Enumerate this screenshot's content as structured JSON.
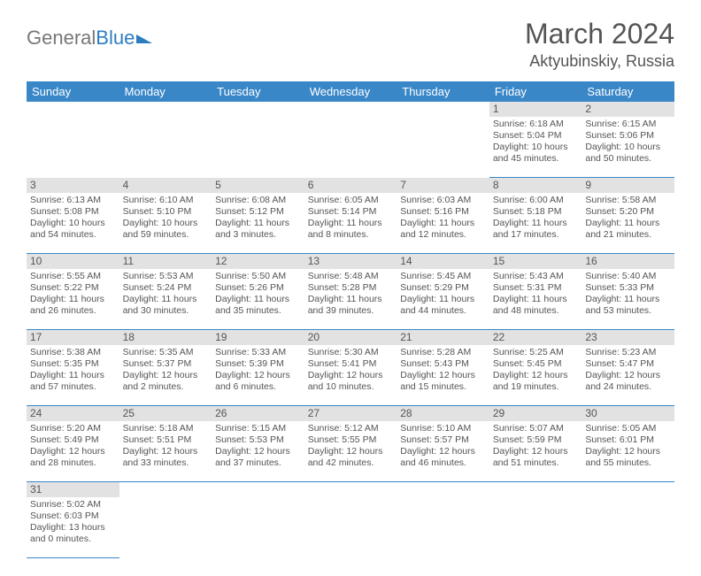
{
  "logo": {
    "part1": "General",
    "part2": "Blue"
  },
  "title": "March 2024",
  "location": "Aktyubinskiy, Russia",
  "dayHeaders": [
    "Sunday",
    "Monday",
    "Tuesday",
    "Wednesday",
    "Thursday",
    "Friday",
    "Saturday"
  ],
  "colors": {
    "headerBg": "#3a87c8",
    "dayNumBg": "#e2e2e2",
    "text": "#555555",
    "logoBlue": "#2d7dc0"
  },
  "weeks": [
    [
      null,
      null,
      null,
      null,
      null,
      {
        "n": "1",
        "sr": "Sunrise: 6:18 AM",
        "ss": "Sunset: 5:04 PM",
        "dl1": "Daylight: 10 hours",
        "dl2": "and 45 minutes."
      },
      {
        "n": "2",
        "sr": "Sunrise: 6:15 AM",
        "ss": "Sunset: 5:06 PM",
        "dl1": "Daylight: 10 hours",
        "dl2": "and 50 minutes."
      }
    ],
    [
      {
        "n": "3",
        "sr": "Sunrise: 6:13 AM",
        "ss": "Sunset: 5:08 PM",
        "dl1": "Daylight: 10 hours",
        "dl2": "and 54 minutes."
      },
      {
        "n": "4",
        "sr": "Sunrise: 6:10 AM",
        "ss": "Sunset: 5:10 PM",
        "dl1": "Daylight: 10 hours",
        "dl2": "and 59 minutes."
      },
      {
        "n": "5",
        "sr": "Sunrise: 6:08 AM",
        "ss": "Sunset: 5:12 PM",
        "dl1": "Daylight: 11 hours",
        "dl2": "and 3 minutes."
      },
      {
        "n": "6",
        "sr": "Sunrise: 6:05 AM",
        "ss": "Sunset: 5:14 PM",
        "dl1": "Daylight: 11 hours",
        "dl2": "and 8 minutes."
      },
      {
        "n": "7",
        "sr": "Sunrise: 6:03 AM",
        "ss": "Sunset: 5:16 PM",
        "dl1": "Daylight: 11 hours",
        "dl2": "and 12 minutes."
      },
      {
        "n": "8",
        "sr": "Sunrise: 6:00 AM",
        "ss": "Sunset: 5:18 PM",
        "dl1": "Daylight: 11 hours",
        "dl2": "and 17 minutes."
      },
      {
        "n": "9",
        "sr": "Sunrise: 5:58 AM",
        "ss": "Sunset: 5:20 PM",
        "dl1": "Daylight: 11 hours",
        "dl2": "and 21 minutes."
      }
    ],
    [
      {
        "n": "10",
        "sr": "Sunrise: 5:55 AM",
        "ss": "Sunset: 5:22 PM",
        "dl1": "Daylight: 11 hours",
        "dl2": "and 26 minutes."
      },
      {
        "n": "11",
        "sr": "Sunrise: 5:53 AM",
        "ss": "Sunset: 5:24 PM",
        "dl1": "Daylight: 11 hours",
        "dl2": "and 30 minutes."
      },
      {
        "n": "12",
        "sr": "Sunrise: 5:50 AM",
        "ss": "Sunset: 5:26 PM",
        "dl1": "Daylight: 11 hours",
        "dl2": "and 35 minutes."
      },
      {
        "n": "13",
        "sr": "Sunrise: 5:48 AM",
        "ss": "Sunset: 5:28 PM",
        "dl1": "Daylight: 11 hours",
        "dl2": "and 39 minutes."
      },
      {
        "n": "14",
        "sr": "Sunrise: 5:45 AM",
        "ss": "Sunset: 5:29 PM",
        "dl1": "Daylight: 11 hours",
        "dl2": "and 44 minutes."
      },
      {
        "n": "15",
        "sr": "Sunrise: 5:43 AM",
        "ss": "Sunset: 5:31 PM",
        "dl1": "Daylight: 11 hours",
        "dl2": "and 48 minutes."
      },
      {
        "n": "16",
        "sr": "Sunrise: 5:40 AM",
        "ss": "Sunset: 5:33 PM",
        "dl1": "Daylight: 11 hours",
        "dl2": "and 53 minutes."
      }
    ],
    [
      {
        "n": "17",
        "sr": "Sunrise: 5:38 AM",
        "ss": "Sunset: 5:35 PM",
        "dl1": "Daylight: 11 hours",
        "dl2": "and 57 minutes."
      },
      {
        "n": "18",
        "sr": "Sunrise: 5:35 AM",
        "ss": "Sunset: 5:37 PM",
        "dl1": "Daylight: 12 hours",
        "dl2": "and 2 minutes."
      },
      {
        "n": "19",
        "sr": "Sunrise: 5:33 AM",
        "ss": "Sunset: 5:39 PM",
        "dl1": "Daylight: 12 hours",
        "dl2": "and 6 minutes."
      },
      {
        "n": "20",
        "sr": "Sunrise: 5:30 AM",
        "ss": "Sunset: 5:41 PM",
        "dl1": "Daylight: 12 hours",
        "dl2": "and 10 minutes."
      },
      {
        "n": "21",
        "sr": "Sunrise: 5:28 AM",
        "ss": "Sunset: 5:43 PM",
        "dl1": "Daylight: 12 hours",
        "dl2": "and 15 minutes."
      },
      {
        "n": "22",
        "sr": "Sunrise: 5:25 AM",
        "ss": "Sunset: 5:45 PM",
        "dl1": "Daylight: 12 hours",
        "dl2": "and 19 minutes."
      },
      {
        "n": "23",
        "sr": "Sunrise: 5:23 AM",
        "ss": "Sunset: 5:47 PM",
        "dl1": "Daylight: 12 hours",
        "dl2": "and 24 minutes."
      }
    ],
    [
      {
        "n": "24",
        "sr": "Sunrise: 5:20 AM",
        "ss": "Sunset: 5:49 PM",
        "dl1": "Daylight: 12 hours",
        "dl2": "and 28 minutes."
      },
      {
        "n": "25",
        "sr": "Sunrise: 5:18 AM",
        "ss": "Sunset: 5:51 PM",
        "dl1": "Daylight: 12 hours",
        "dl2": "and 33 minutes."
      },
      {
        "n": "26",
        "sr": "Sunrise: 5:15 AM",
        "ss": "Sunset: 5:53 PM",
        "dl1": "Daylight: 12 hours",
        "dl2": "and 37 minutes."
      },
      {
        "n": "27",
        "sr": "Sunrise: 5:12 AM",
        "ss": "Sunset: 5:55 PM",
        "dl1": "Daylight: 12 hours",
        "dl2": "and 42 minutes."
      },
      {
        "n": "28",
        "sr": "Sunrise: 5:10 AM",
        "ss": "Sunset: 5:57 PM",
        "dl1": "Daylight: 12 hours",
        "dl2": "and 46 minutes."
      },
      {
        "n": "29",
        "sr": "Sunrise: 5:07 AM",
        "ss": "Sunset: 5:59 PM",
        "dl1": "Daylight: 12 hours",
        "dl2": "and 51 minutes."
      },
      {
        "n": "30",
        "sr": "Sunrise: 5:05 AM",
        "ss": "Sunset: 6:01 PM",
        "dl1": "Daylight: 12 hours",
        "dl2": "and 55 minutes."
      }
    ],
    [
      {
        "n": "31",
        "sr": "Sunrise: 5:02 AM",
        "ss": "Sunset: 6:03 PM",
        "dl1": "Daylight: 13 hours",
        "dl2": "and 0 minutes."
      },
      null,
      null,
      null,
      null,
      null,
      null
    ]
  ]
}
